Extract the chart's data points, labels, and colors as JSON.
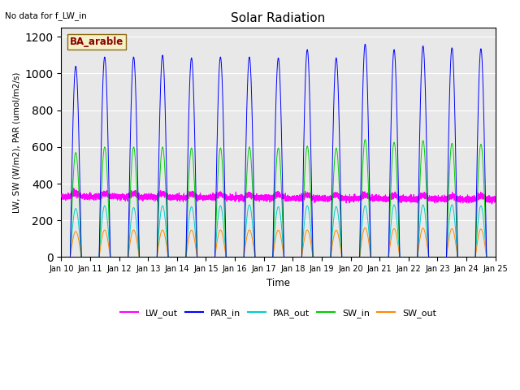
{
  "title": "Solar Radiation",
  "note": "No data for f_LW_in",
  "xlabel": "Time",
  "ylabel": "LW, SW (W/m2), PAR (umol/m2/s)",
  "site_label": "BA_arable",
  "ylim": [
    0,
    1250
  ],
  "yticks": [
    0,
    200,
    400,
    600,
    800,
    1000,
    1200
  ],
  "start_day": 10,
  "end_day": 25,
  "colors": {
    "LW_out": "#ff00ff",
    "PAR_in": "#0000ff",
    "PAR_out": "#00cccc",
    "SW_in": "#00cc00",
    "SW_out": "#ff8800"
  },
  "background_color": "#e8e8e8",
  "PAR_in_peaks": [
    1040,
    1090,
    1090,
    1100,
    1085,
    1090,
    1090,
    1085,
    1130,
    1085,
    1160,
    1130,
    1150,
    1140,
    1135
  ],
  "SW_in_peaks": [
    570,
    600,
    600,
    600,
    595,
    595,
    600,
    595,
    605,
    595,
    640,
    625,
    635,
    620,
    615
  ],
  "PAR_out_peaks": [
    265,
    280,
    270,
    280,
    275,
    280,
    285,
    275,
    280,
    275,
    280,
    285,
    285,
    285,
    280
  ],
  "SW_out_peaks": [
    140,
    148,
    148,
    148,
    147,
    148,
    148,
    147,
    148,
    147,
    160,
    155,
    158,
    155,
    153
  ],
  "figsize": [
    6.4,
    4.8
  ],
  "dpi": 100
}
